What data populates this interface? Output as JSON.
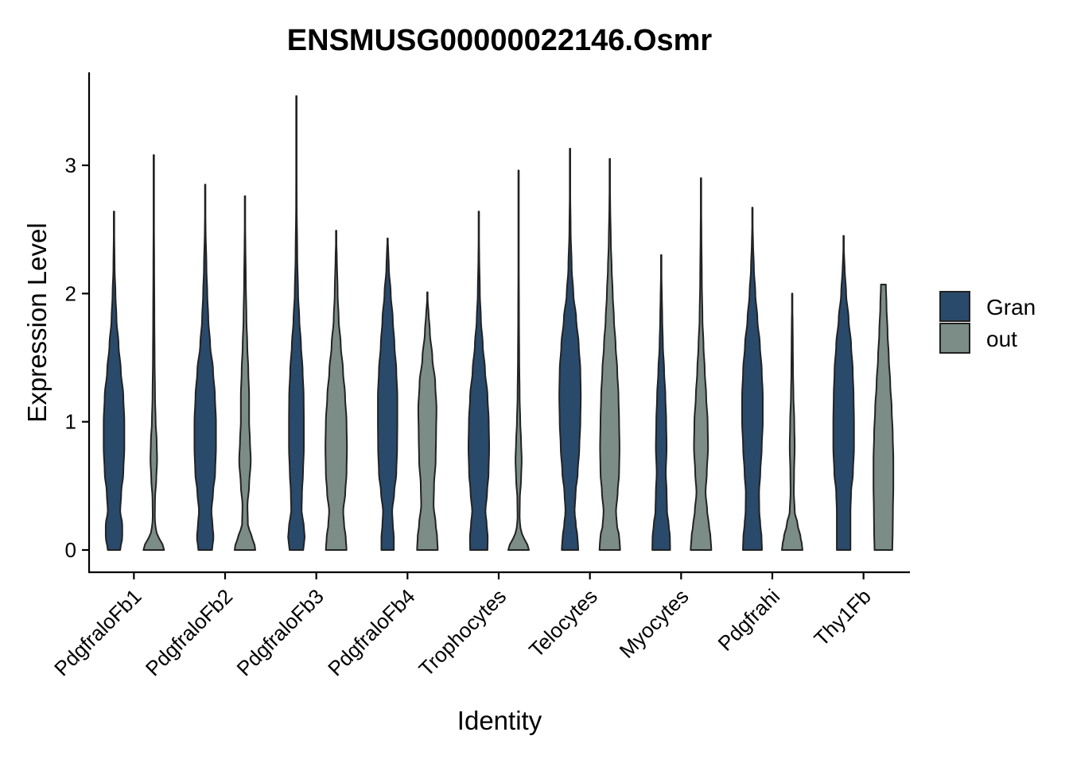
{
  "chart_data": {
    "type": "violin",
    "title": "ENSMUSG00000022146.Osmr",
    "xlabel": "Identity",
    "ylabel": "Expression Level",
    "ylim": [
      -0.18,
      3.6
    ],
    "yticks": [
      0,
      1,
      2,
      3
    ],
    "grid": false,
    "legend_position": "right",
    "categories": [
      "PdgfraloFb1",
      "PdgfraloFb2",
      "PdgfraloFb3",
      "PdgfraloFb4",
      "Trophocytes",
      "Telocytes",
      "Myocytes",
      "Pdgfrahi",
      "Thy1Fb"
    ],
    "series": [
      {
        "name": "Gran",
        "color": "#2a4a6c",
        "max": [
          2.64,
          2.85,
          3.54,
          2.43,
          2.64,
          3.13,
          2.3,
          2.67,
          2.45
        ],
        "flat_top": [
          false,
          false,
          false,
          false,
          false,
          false,
          false,
          false,
          false
        ],
        "profiles": [
          [
            [
              0,
              0.3
            ],
            [
              0.1,
              0.4
            ],
            [
              0.2,
              0.4
            ],
            [
              0.3,
              0.3
            ],
            [
              0.45,
              0.35
            ],
            [
              0.6,
              0.45
            ],
            [
              0.8,
              0.5
            ],
            [
              1.0,
              0.5
            ],
            [
              1.2,
              0.45
            ],
            [
              1.4,
              0.33
            ],
            [
              1.6,
              0.22
            ],
            [
              1.8,
              0.12
            ],
            [
              2.0,
              0.07
            ],
            [
              2.2,
              0.03
            ],
            [
              2.5,
              0.01
            ]
          ],
          [
            [
              0,
              0.33
            ],
            [
              0.1,
              0.4
            ],
            [
              0.2,
              0.35
            ],
            [
              0.3,
              0.3
            ],
            [
              0.45,
              0.38
            ],
            [
              0.6,
              0.48
            ],
            [
              0.8,
              0.52
            ],
            [
              1.0,
              0.52
            ],
            [
              1.2,
              0.47
            ],
            [
              1.4,
              0.38
            ],
            [
              1.6,
              0.24
            ],
            [
              1.8,
              0.15
            ],
            [
              2.0,
              0.1
            ],
            [
              2.2,
              0.06
            ],
            [
              2.5,
              0.02
            ]
          ],
          [
            [
              0,
              0.33
            ],
            [
              0.1,
              0.4
            ],
            [
              0.2,
              0.35
            ],
            [
              0.3,
              0.25
            ],
            [
              0.45,
              0.27
            ],
            [
              0.6,
              0.32
            ],
            [
              0.8,
              0.36
            ],
            [
              1.0,
              0.36
            ],
            [
              1.2,
              0.35
            ],
            [
              1.4,
              0.3
            ],
            [
              1.6,
              0.22
            ],
            [
              1.8,
              0.14
            ],
            [
              2.0,
              0.08
            ],
            [
              2.3,
              0.04
            ],
            [
              2.7,
              0.015
            ],
            [
              3.2,
              0.005
            ]
          ],
          [
            [
              0,
              0.3
            ],
            [
              0.1,
              0.3
            ],
            [
              0.2,
              0.25
            ],
            [
              0.3,
              0.22
            ],
            [
              0.45,
              0.32
            ],
            [
              0.6,
              0.42
            ],
            [
              0.8,
              0.46
            ],
            [
              1.0,
              0.47
            ],
            [
              1.2,
              0.47
            ],
            [
              1.4,
              0.42
            ],
            [
              1.6,
              0.33
            ],
            [
              1.8,
              0.25
            ],
            [
              2.0,
              0.15
            ],
            [
              2.2,
              0.06
            ],
            [
              2.35,
              0.03
            ]
          ],
          [
            [
              0,
              0.42
            ],
            [
              0.1,
              0.43
            ],
            [
              0.2,
              0.38
            ],
            [
              0.3,
              0.32
            ],
            [
              0.45,
              0.4
            ],
            [
              0.6,
              0.47
            ],
            [
              0.8,
              0.5
            ],
            [
              1.0,
              0.48
            ],
            [
              1.2,
              0.42
            ],
            [
              1.4,
              0.3
            ],
            [
              1.6,
              0.19
            ],
            [
              1.8,
              0.1
            ],
            [
              2.0,
              0.05
            ],
            [
              2.3,
              0.02
            ]
          ],
          [
            [
              0,
              0.4
            ],
            [
              0.1,
              0.36
            ],
            [
              0.2,
              0.28
            ],
            [
              0.3,
              0.22
            ],
            [
              0.45,
              0.27
            ],
            [
              0.6,
              0.37
            ],
            [
              0.8,
              0.45
            ],
            [
              1.0,
              0.5
            ],
            [
              1.2,
              0.52
            ],
            [
              1.4,
              0.5
            ],
            [
              1.6,
              0.42
            ],
            [
              1.8,
              0.3
            ],
            [
              2.0,
              0.16
            ],
            [
              2.2,
              0.08
            ],
            [
              2.5,
              0.03
            ],
            [
              2.8,
              0.01
            ]
          ],
          [
            [
              0,
              0.43
            ],
            [
              0.1,
              0.42
            ],
            [
              0.2,
              0.36
            ],
            [
              0.3,
              0.28
            ],
            [
              0.45,
              0.26
            ],
            [
              0.6,
              0.22
            ],
            [
              0.8,
              0.26
            ],
            [
              1.0,
              0.24
            ],
            [
              1.2,
              0.2
            ],
            [
              1.4,
              0.14
            ],
            [
              1.6,
              0.08
            ],
            [
              1.8,
              0.05
            ],
            [
              2.0,
              0.03
            ]
          ],
          [
            [
              0,
              0.46
            ],
            [
              0.1,
              0.44
            ],
            [
              0.2,
              0.38
            ],
            [
              0.3,
              0.33
            ],
            [
              0.45,
              0.32
            ],
            [
              0.6,
              0.38
            ],
            [
              0.8,
              0.45
            ],
            [
              1.0,
              0.5
            ],
            [
              1.2,
              0.5
            ],
            [
              1.4,
              0.45
            ],
            [
              1.6,
              0.36
            ],
            [
              1.8,
              0.24
            ],
            [
              2.0,
              0.14
            ],
            [
              2.2,
              0.07
            ],
            [
              2.4,
              0.03
            ]
          ],
          [
            [
              0,
              0.33
            ],
            [
              0.15,
              0.33
            ],
            [
              0.3,
              0.33
            ],
            [
              0.45,
              0.36
            ],
            [
              0.6,
              0.45
            ],
            [
              0.8,
              0.5
            ],
            [
              1.0,
              0.5
            ],
            [
              1.2,
              0.48
            ],
            [
              1.4,
              0.44
            ],
            [
              1.6,
              0.36
            ],
            [
              1.8,
              0.24
            ],
            [
              2.0,
              0.12
            ],
            [
              2.2,
              0.05
            ]
          ]
        ]
      },
      {
        "name": "out",
        "color": "#7c8c86",
        "max": [
          3.08,
          2.76,
          2.49,
          2.01,
          2.96,
          3.05,
          2.9,
          2.0,
          2.07
        ],
        "flat_top": [
          false,
          false,
          false,
          false,
          false,
          false,
          false,
          false,
          true
        ],
        "profiles": [
          [
            [
              0,
              0.5
            ],
            [
              0.05,
              0.42
            ],
            [
              0.1,
              0.24
            ],
            [
              0.15,
              0.1
            ],
            [
              0.25,
              0.05
            ],
            [
              0.4,
              0.06
            ],
            [
              0.55,
              0.12
            ],
            [
              0.7,
              0.16
            ],
            [
              0.85,
              0.14
            ],
            [
              1.0,
              0.09
            ],
            [
              1.2,
              0.06
            ],
            [
              1.5,
              0.04
            ],
            [
              1.8,
              0.03
            ],
            [
              2.2,
              0.02
            ],
            [
              2.6,
              0.01
            ]
          ],
          [
            [
              0,
              0.5
            ],
            [
              0.05,
              0.46
            ],
            [
              0.1,
              0.32
            ],
            [
              0.2,
              0.14
            ],
            [
              0.35,
              0.12
            ],
            [
              0.5,
              0.2
            ],
            [
              0.7,
              0.28
            ],
            [
              0.85,
              0.24
            ],
            [
              1.0,
              0.2
            ],
            [
              1.2,
              0.2
            ],
            [
              1.4,
              0.16
            ],
            [
              1.6,
              0.11
            ],
            [
              1.8,
              0.07
            ],
            [
              2.1,
              0.04
            ],
            [
              2.4,
              0.02
            ]
          ],
          [
            [
              0,
              0.5
            ],
            [
              0.1,
              0.46
            ],
            [
              0.2,
              0.38
            ],
            [
              0.3,
              0.34
            ],
            [
              0.45,
              0.44
            ],
            [
              0.6,
              0.5
            ],
            [
              0.8,
              0.52
            ],
            [
              1.0,
              0.5
            ],
            [
              1.2,
              0.43
            ],
            [
              1.4,
              0.33
            ],
            [
              1.6,
              0.22
            ],
            [
              1.8,
              0.12
            ],
            [
              2.0,
              0.07
            ],
            [
              2.3,
              0.03
            ]
          ],
          [
            [
              0,
              0.5
            ],
            [
              0.1,
              0.47
            ],
            [
              0.2,
              0.4
            ],
            [
              0.35,
              0.3
            ],
            [
              0.5,
              0.32
            ],
            [
              0.7,
              0.4
            ],
            [
              0.9,
              0.42
            ],
            [
              1.1,
              0.44
            ],
            [
              1.3,
              0.38
            ],
            [
              1.5,
              0.24
            ],
            [
              1.7,
              0.12
            ],
            [
              1.85,
              0.06
            ]
          ],
          [
            [
              0,
              0.5
            ],
            [
              0.05,
              0.42
            ],
            [
              0.1,
              0.24
            ],
            [
              0.15,
              0.1
            ],
            [
              0.25,
              0.05
            ],
            [
              0.4,
              0.06
            ],
            [
              0.55,
              0.12
            ],
            [
              0.7,
              0.15
            ],
            [
              0.85,
              0.12
            ],
            [
              1.0,
              0.08
            ],
            [
              1.2,
              0.05
            ],
            [
              1.5,
              0.03
            ],
            [
              1.8,
              0.02
            ],
            [
              2.3,
              0.01
            ]
          ],
          [
            [
              0,
              0.5
            ],
            [
              0.1,
              0.46
            ],
            [
              0.2,
              0.34
            ],
            [
              0.3,
              0.3
            ],
            [
              0.45,
              0.38
            ],
            [
              0.6,
              0.45
            ],
            [
              0.8,
              0.47
            ],
            [
              1.0,
              0.45
            ],
            [
              1.2,
              0.42
            ],
            [
              1.4,
              0.36
            ],
            [
              1.6,
              0.28
            ],
            [
              1.8,
              0.2
            ],
            [
              2.0,
              0.14
            ],
            [
              2.2,
              0.09
            ],
            [
              2.4,
              0.05
            ],
            [
              2.7,
              0.02
            ]
          ],
          [
            [
              0,
              0.5
            ],
            [
              0.1,
              0.46
            ],
            [
              0.2,
              0.38
            ],
            [
              0.3,
              0.3
            ],
            [
              0.45,
              0.22
            ],
            [
              0.6,
              0.28
            ],
            [
              0.8,
              0.34
            ],
            [
              1.0,
              0.32
            ],
            [
              1.2,
              0.25
            ],
            [
              1.4,
              0.18
            ],
            [
              1.6,
              0.12
            ],
            [
              1.8,
              0.07
            ],
            [
              2.1,
              0.04
            ],
            [
              2.5,
              0.02
            ]
          ],
          [
            [
              0,
              0.5
            ],
            [
              0.05,
              0.46
            ],
            [
              0.1,
              0.4
            ],
            [
              0.2,
              0.26
            ],
            [
              0.3,
              0.12
            ],
            [
              0.45,
              0.08
            ],
            [
              0.6,
              0.09
            ],
            [
              0.8,
              0.12
            ],
            [
              1.0,
              0.1
            ],
            [
              1.2,
              0.06
            ],
            [
              1.4,
              0.04
            ],
            [
              1.6,
              0.03
            ],
            [
              1.8,
              0.02
            ]
          ],
          [
            [
              0,
              0.43
            ],
            [
              0.15,
              0.45
            ],
            [
              0.3,
              0.46
            ],
            [
              0.5,
              0.48
            ],
            [
              0.7,
              0.48
            ],
            [
              0.9,
              0.45
            ],
            [
              1.1,
              0.4
            ],
            [
              1.3,
              0.33
            ],
            [
              1.5,
              0.26
            ],
            [
              1.7,
              0.2
            ],
            [
              1.9,
              0.15
            ],
            [
              2.07,
              0.12
            ]
          ]
        ]
      }
    ]
  }
}
